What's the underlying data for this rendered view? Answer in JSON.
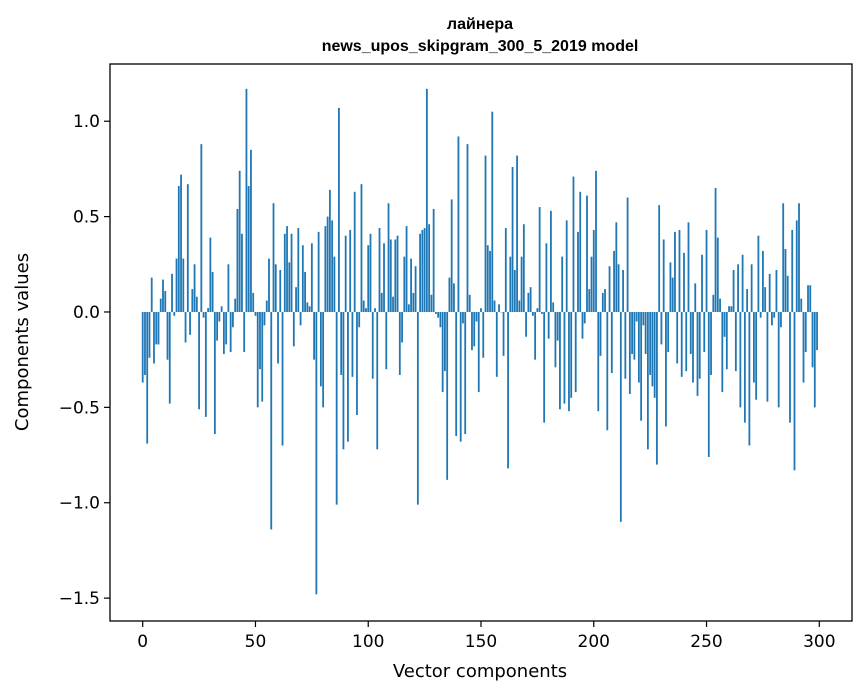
{
  "chart_data": {
    "type": "bar",
    "title": "лайнера",
    "subtitle": "news_upos_skipgram_300_5_2019 model",
    "xlabel": "Vector components",
    "ylabel": "Components values",
    "xlim": [
      -14.5,
      314.5
    ],
    "ylim": [
      -1.62,
      1.3
    ],
    "xticks": [
      0,
      50,
      100,
      150,
      200,
      250,
      300
    ],
    "xtick_labels": [
      "0",
      "50",
      "100",
      "150",
      "200",
      "250",
      "300"
    ],
    "yticks": [
      -1.5,
      -1.0,
      -0.5,
      0.0,
      0.5,
      1.0
    ],
    "ytick_labels": [
      "−1.5",
      "−1.0",
      "−0.5",
      "0.0",
      "0.5",
      "1.0"
    ],
    "grid": false,
    "bar_color": "#1f77b4",
    "x_start": 0,
    "values": [
      -0.37,
      -0.33,
      -0.69,
      -0.24,
      0.18,
      -0.27,
      -0.17,
      -0.17,
      0.07,
      0.17,
      0.11,
      -0.25,
      -0.48,
      0.2,
      -0.02,
      0.28,
      0.66,
      0.72,
      0.28,
      -0.16,
      0.67,
      -0.12,
      0.12,
      0.25,
      0.08,
      -0.51,
      0.88,
      -0.03,
      -0.55,
      0.02,
      0.39,
      0.21,
      -0.64,
      -0.15,
      -0.05,
      0.03,
      -0.22,
      -0.17,
      0.25,
      -0.21,
      -0.08,
      0.07,
      0.54,
      0.74,
      0.41,
      -0.21,
      1.17,
      0.66,
      0.85,
      0.1,
      -0.02,
      -0.5,
      -0.3,
      -0.47,
      -0.07,
      0.06,
      0.28,
      -1.14,
      0.57,
      0.25,
      -0.27,
      0.22,
      -0.7,
      0.41,
      0.45,
      0.26,
      0.41,
      -0.18,
      0.13,
      0.44,
      -0.07,
      0.35,
      0.21,
      0.05,
      0.03,
      0.36,
      -0.25,
      -1.48,
      0.42,
      -0.39,
      -0.5,
      0.45,
      0.5,
      0.64,
      0.48,
      0.29,
      -1.01,
      1.07,
      -0.33,
      -0.72,
      0.4,
      -0.68,
      0.43,
      -0.34,
      0.63,
      -0.54,
      -0.08,
      0.67,
      0.06,
      0.02,
      0.35,
      0.41,
      -0.35,
      0.02,
      -0.72,
      0.44,
      0.1,
      0.36,
      -0.3,
      0.57,
      0.38,
      0.08,
      0.38,
      0.4,
      -0.33,
      -0.16,
      0.29,
      0.45,
      0.04,
      0.28,
      0.1,
      0.24,
      -1.01,
      0.41,
      0.43,
      0.44,
      1.17,
      0.46,
      0.09,
      0.54,
      -0.01,
      -0.03,
      -0.08,
      -0.42,
      -0.31,
      -0.88,
      0.18,
      0.59,
      0.15,
      -0.65,
      0.92,
      -0.68,
      -0.06,
      -0.64,
      0.88,
      0.09,
      -0.2,
      -0.18,
      -0.05,
      -0.42,
      0.02,
      -0.24,
      0.82,
      0.35,
      0.32,
      1.05,
      0.06,
      -0.34,
      0.04,
      0.0,
      -0.23,
      0.44,
      -0.82,
      0.29,
      0.76,
      0.22,
      0.82,
      0.06,
      0.29,
      0.46,
      -0.13,
      0.1,
      0.13,
      -0.02,
      -0.25,
      0.02,
      0.55,
      -0.01,
      -0.58,
      0.36,
      -0.14,
      0.53,
      0.05,
      -0.29,
      -0.15,
      -0.51,
      0.29,
      -0.48,
      0.48,
      -0.52,
      -0.45,
      0.71,
      -0.42,
      0.42,
      0.63,
      -0.14,
      -0.06,
      0.61,
      0.12,
      0.29,
      0.43,
      0.74,
      -0.52,
      -0.23,
      0.1,
      0.12,
      -0.62,
      0.24,
      -0.32,
      0.32,
      0.47,
      0.25,
      -1.1,
      0.22,
      -0.35,
      0.6,
      -0.43,
      -0.22,
      -0.25,
      -0.05,
      -0.37,
      -0.57,
      -0.07,
      -0.22,
      -0.72,
      -0.33,
      -0.39,
      -0.45,
      -0.8,
      0.56,
      -0.17,
      0.38,
      -0.6,
      -0.21,
      0.26,
      0.18,
      0.42,
      -0.27,
      0.43,
      -0.34,
      0.31,
      -0.31,
      0.47,
      -0.22,
      -0.37,
      0.15,
      -0.44,
      -0.35,
      0.3,
      -0.21,
      0.43,
      -0.76,
      -0.33,
      0.09,
      0.65,
      0.39,
      0.07,
      -0.42,
      -0.13,
      -0.3,
      0.03,
      0.03,
      0.22,
      -0.31,
      0.25,
      -0.5,
      0.3,
      -0.58,
      0.12,
      -0.7,
      0.25,
      -0.37,
      -0.46,
      0.4,
      -0.03,
      0.32,
      0.13,
      -0.47,
      0.2,
      -0.07,
      -0.03,
      0.22,
      -0.5,
      -0.08,
      0.57,
      0.33,
      0.19,
      -0.58,
      0.43,
      -0.83,
      0.48,
      0.57,
      0.07,
      -0.37,
      -0.21,
      0.14,
      0.14,
      -0.29,
      -0.5,
      -0.2
    ]
  }
}
